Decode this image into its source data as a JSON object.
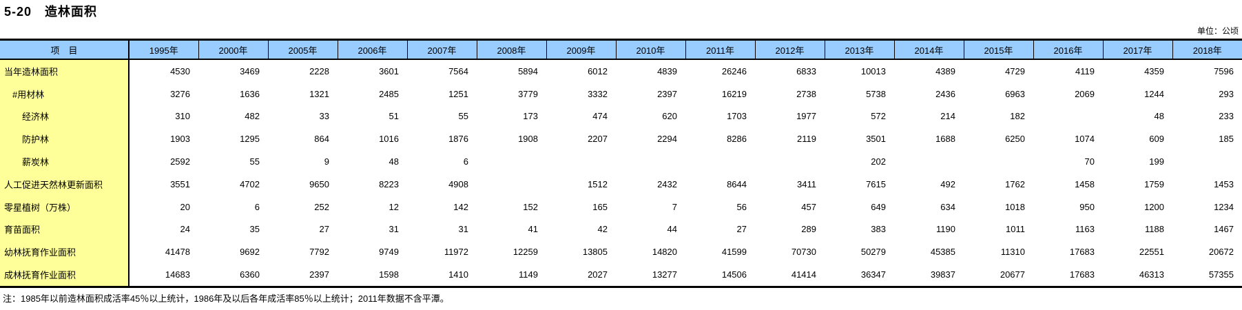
{
  "title": "5-20　造林面积",
  "unit_label": "单位：公顷",
  "note": "注：1985年以前造林面积成活率45％以上统计，1986年及以后各年成活率85％以上统计；2011年数据不含平潭。",
  "colors": {
    "header_bg": "#99CCFF",
    "label_bg": "#FFFF99",
    "border": "#000000"
  },
  "table": {
    "item_header": "项　目",
    "years": [
      "1995年",
      "2000年",
      "2005年",
      "2006年",
      "2007年",
      "2008年",
      "2009年",
      "2010年",
      "2011年",
      "2012年",
      "2013年",
      "2014年",
      "2015年",
      "2016年",
      "2017年",
      "2018年"
    ],
    "rows": [
      {
        "label": "当年造林面积",
        "indent": 0,
        "values": [
          "4530",
          "3469",
          "2228",
          "3601",
          "7564",
          "5894",
          "6012",
          "4839",
          "26246",
          "6833",
          "10013",
          "4389",
          "4729",
          "4119",
          "4359",
          "7596"
        ]
      },
      {
        "label": "#用材林",
        "indent": 1,
        "values": [
          "3276",
          "1636",
          "1321",
          "2485",
          "1251",
          "3779",
          "3332",
          "2397",
          "16219",
          "2738",
          "5738",
          "2436",
          "6963",
          "2069",
          "1244",
          "293"
        ]
      },
      {
        "label": "经济林",
        "indent": 2,
        "values": [
          "310",
          "482",
          "33",
          "51",
          "55",
          "173",
          "474",
          "620",
          "1703",
          "1977",
          "572",
          "214",
          "182",
          "",
          "48",
          "233"
        ]
      },
      {
        "label": "防护林",
        "indent": 2,
        "values": [
          "1903",
          "1295",
          "864",
          "1016",
          "1876",
          "1908",
          "2207",
          "2294",
          "8286",
          "2119",
          "3501",
          "1688",
          "6250",
          "1074",
          "609",
          "185"
        ]
      },
      {
        "label": "薪炭林",
        "indent": 2,
        "values": [
          "2592",
          "55",
          "9",
          "48",
          "6",
          "",
          "",
          "",
          "",
          "",
          "202",
          "",
          "",
          "70",
          "199",
          ""
        ]
      },
      {
        "label": "人工促进天然林更新面积",
        "indent": 0,
        "values": [
          "3551",
          "4702",
          "9650",
          "8223",
          "4908",
          "",
          "1512",
          "2432",
          "8644",
          "3411",
          "7615",
          "492",
          "1762",
          "1458",
          "1759",
          "1453"
        ]
      },
      {
        "label": "零星植树（万株）",
        "indent": 0,
        "values": [
          "20",
          "6",
          "252",
          "12",
          "142",
          "152",
          "165",
          "7",
          "56",
          "457",
          "649",
          "634",
          "1018",
          "950",
          "1200",
          "1234"
        ]
      },
      {
        "label": "育苗面积",
        "indent": 0,
        "values": [
          "24",
          "35",
          "27",
          "31",
          "31",
          "41",
          "42",
          "44",
          "27",
          "289",
          "383",
          "1190",
          "1011",
          "1163",
          "1188",
          "1467"
        ]
      },
      {
        "label": "幼林抚育作业面积",
        "indent": 0,
        "values": [
          "41478",
          "9692",
          "7792",
          "9749",
          "11972",
          "12259",
          "13805",
          "14820",
          "41599",
          "70730",
          "50279",
          "45385",
          "11310",
          "17683",
          "22551",
          "20672"
        ]
      },
      {
        "label": "成林抚育作业面积",
        "indent": 0,
        "values": [
          "14683",
          "6360",
          "2397",
          "1598",
          "1410",
          "1149",
          "2027",
          "13277",
          "14506",
          "41414",
          "36347",
          "39837",
          "20677",
          "17683",
          "46313",
          "57355"
        ]
      }
    ]
  }
}
